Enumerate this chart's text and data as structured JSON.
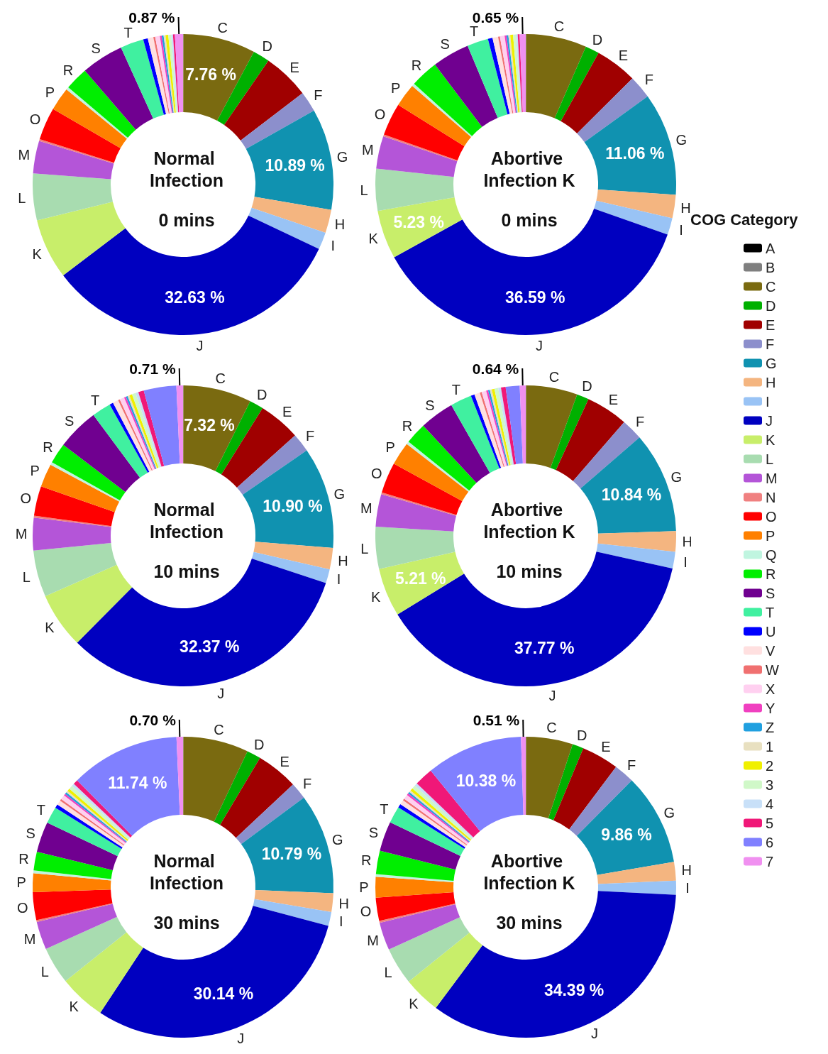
{
  "chart_data": [
    {
      "type": "donut",
      "title": "Normal Infection",
      "subtitle": "0 mins",
      "legend": "right",
      "legend_title": "COG Category",
      "categories": [
        "A",
        "B",
        "C",
        "D",
        "E",
        "F",
        "G",
        "H",
        "I",
        "J",
        "K",
        "L",
        "M",
        "N",
        "O",
        "P",
        "Q",
        "R",
        "S",
        "T",
        "U",
        "V",
        "W",
        "X",
        "Y",
        "Z",
        "1",
        "2",
        "3",
        "4",
        "5",
        "6",
        "7"
      ],
      "values": [
        0,
        0.05,
        7.76,
        1.8,
        5,
        2.2,
        10.89,
        2.5,
        1.85,
        32.63,
        6.5,
        5,
        3.5,
        0.2,
        3.5,
        2.5,
        0.3,
        2.5,
        4.55,
        2.5,
        0.5,
        0.6,
        0.2,
        0.5,
        0.2,
        0.2,
        0.2,
        0.3,
        0.3,
        0.2,
        0.2,
        0,
        0.87
      ],
      "colors": [
        "#000000",
        "#7f7f7f",
        "#7a6a10",
        "#00b000",
        "#a00000",
        "#8c8fcc",
        "#1092b0",
        "#f4b580",
        "#99c3f5",
        "#0000c0",
        "#c8ee6a",
        "#a8dcb0",
        "#b455d8",
        "#f08080",
        "#ff0000",
        "#ff8000",
        "#c0f5e0",
        "#00ee00",
        "#700090",
        "#40f0a0",
        "#0000ff",
        "#ffe0e0",
        "#f07070",
        "#ffd0f0",
        "#f040c0",
        "#20a0e0",
        "#e8e0c0",
        "#f0f000",
        "#d0f8c8",
        "#c8e0f8",
        "#f01878",
        "#8080ff",
        "#f090f0"
      ],
      "value_labels": [
        null,
        null,
        "7.76 %",
        null,
        null,
        null,
        "10.89 %",
        null,
        null,
        "32.63 %",
        null,
        null,
        null,
        null,
        null,
        null,
        null,
        null,
        null,
        null,
        null,
        null,
        null,
        null,
        null,
        null,
        null,
        null,
        null,
        null,
        null,
        null,
        "0.87 %"
      ]
    },
    {
      "type": "donut",
      "title": "Abortive Infection K",
      "subtitle": "0 mins",
      "categories": [
        null,
        null,
        "C",
        "D",
        "E",
        "F",
        "G",
        "H",
        "I",
        "J",
        "K",
        "L",
        "M",
        null,
        "O",
        "P",
        null,
        "R",
        "S",
        "T",
        null,
        null,
        null,
        null,
        null,
        null,
        null,
        null,
        null,
        null,
        null,
        null,
        null
      ],
      "values": [
        0,
        0.05,
        6.5,
        1.5,
        4.5,
        2.5,
        11.06,
        2.5,
        1.8,
        36.59,
        5.23,
        4.5,
        3.5,
        0.2,
        3.5,
        2.5,
        0.3,
        3,
        4,
        2.27,
        0.5,
        0.6,
        0.2,
        0.5,
        0.2,
        0.2,
        0.2,
        0.3,
        0.3,
        0.2,
        0.2,
        0,
        0.65
      ],
      "colors": [
        "#000000",
        "#7f7f7f",
        "#7a6a10",
        "#00b000",
        "#a00000",
        "#8c8fcc",
        "#1092b0",
        "#f4b580",
        "#99c3f5",
        "#0000c0",
        "#c8ee6a",
        "#a8dcb0",
        "#b455d8",
        "#f08080",
        "#ff0000",
        "#ff8000",
        "#c0f5e0",
        "#00ee00",
        "#700090",
        "#40f0a0",
        "#0000ff",
        "#ffe0e0",
        "#f07070",
        "#ffd0f0",
        "#f040c0",
        "#20a0e0",
        "#e8e0c0",
        "#f0f000",
        "#d0f8c8",
        "#c8e0f8",
        "#f01878",
        "#8080ff",
        "#f090f0"
      ],
      "value_labels": [
        null,
        null,
        null,
        null,
        null,
        null,
        "11.06 %",
        null,
        null,
        "36.59 %",
        "5.23 %",
        null,
        null,
        null,
        null,
        null,
        null,
        null,
        null,
        null,
        null,
        null,
        null,
        null,
        null,
        null,
        null,
        null,
        null,
        null,
        null,
        null,
        "0.65 %"
      ]
    },
    {
      "type": "donut",
      "title": "Normal Infection",
      "subtitle": "10 mins",
      "categories": [
        null,
        null,
        "C",
        "D",
        "E",
        "F",
        "G",
        "H",
        "I",
        "J",
        "K",
        "L",
        "M",
        null,
        "O",
        "P",
        null,
        "R",
        "S",
        "T",
        null,
        null,
        null,
        null,
        null,
        null,
        null,
        null,
        null,
        null,
        null,
        null,
        null
      ],
      "values": [
        0,
        0.05,
        7.32,
        1.5,
        4.5,
        2,
        10.9,
        2.3,
        1.5,
        32.37,
        6,
        5,
        3.5,
        0.2,
        3.2,
        2.5,
        0.3,
        2.2,
        4.5,
        2.05,
        0.4,
        0.6,
        0.2,
        0.5,
        0.2,
        0.2,
        0.2,
        0.3,
        0.4,
        0.3,
        0.6,
        3.5,
        0.71
      ],
      "colors": [
        "#000000",
        "#7f7f7f",
        "#7a6a10",
        "#00b000",
        "#a00000",
        "#8c8fcc",
        "#1092b0",
        "#f4b580",
        "#99c3f5",
        "#0000c0",
        "#c8ee6a",
        "#a8dcb0",
        "#b455d8",
        "#f08080",
        "#ff0000",
        "#ff8000",
        "#c0f5e0",
        "#00ee00",
        "#700090",
        "#40f0a0",
        "#0000ff",
        "#ffe0e0",
        "#f07070",
        "#ffd0f0",
        "#f040c0",
        "#20a0e0",
        "#e8e0c0",
        "#f0f000",
        "#d0f8c8",
        "#c8e0f8",
        "#f01878",
        "#8080ff",
        "#f090f0"
      ],
      "value_labels": [
        null,
        null,
        "7.32 %",
        null,
        null,
        null,
        "10.90 %",
        null,
        null,
        "32.37 %",
        null,
        null,
        null,
        null,
        null,
        null,
        null,
        null,
        null,
        null,
        null,
        null,
        null,
        null,
        null,
        null,
        null,
        null,
        null,
        null,
        null,
        null,
        "0.71 %"
      ]
    },
    {
      "type": "donut",
      "title": "Abortive Infection K",
      "subtitle": "10 mins",
      "categories": [
        null,
        null,
        "C",
        "D",
        "E",
        "F",
        "G",
        "H",
        "I",
        "J",
        "K",
        "L",
        "M",
        null,
        "O",
        "P",
        null,
        "R",
        "S",
        "T",
        null,
        null,
        null,
        null,
        null,
        null,
        null,
        null,
        null,
        null,
        null,
        null,
        null
      ],
      "values": [
        0,
        0.05,
        5.5,
        1.3,
        4.5,
        2.3,
        10.84,
        2.2,
        1.8,
        37.77,
        5.21,
        4.5,
        3.5,
        0.2,
        3.3,
        2.5,
        0.3,
        2.3,
        3.69,
        2.3,
        0.4,
        0.6,
        0.2,
        0.5,
        0.2,
        0.2,
        0.2,
        0.3,
        0.4,
        0.3,
        0.5,
        1.5,
        0.64
      ],
      "colors": [
        "#000000",
        "#7f7f7f",
        "#7a6a10",
        "#00b000",
        "#a00000",
        "#8c8fcc",
        "#1092b0",
        "#f4b580",
        "#99c3f5",
        "#0000c0",
        "#c8ee6a",
        "#a8dcb0",
        "#b455d8",
        "#f08080",
        "#ff0000",
        "#ff8000",
        "#c0f5e0",
        "#00ee00",
        "#700090",
        "#40f0a0",
        "#0000ff",
        "#ffe0e0",
        "#f07070",
        "#ffd0f0",
        "#f040c0",
        "#20a0e0",
        "#e8e0c0",
        "#f0f000",
        "#d0f8c8",
        "#c8e0f8",
        "#f01878",
        "#8080ff",
        "#f090f0"
      ],
      "value_labels": [
        null,
        null,
        null,
        null,
        null,
        null,
        "10.84 %",
        null,
        null,
        "37.77 %",
        "5.21 %",
        null,
        null,
        null,
        null,
        null,
        null,
        null,
        null,
        null,
        null,
        null,
        null,
        null,
        null,
        null,
        null,
        null,
        null,
        null,
        null,
        null,
        "0.64 %"
      ]
    },
    {
      "type": "donut",
      "title": "Normal Infection",
      "subtitle": "30 mins",
      "categories": [
        null,
        null,
        "C",
        "D",
        "E",
        "F",
        "G",
        "H",
        "I",
        "J",
        "K",
        "L",
        "M",
        null,
        "O",
        "P",
        null,
        "R",
        "S",
        "T",
        null,
        null,
        null,
        null,
        null,
        null,
        null,
        null,
        null,
        null,
        null,
        null,
        null
      ],
      "values": [
        0,
        0.05,
        7,
        1.5,
        4.5,
        1.8,
        10.79,
        2,
        1.5,
        30.14,
        5,
        4,
        3,
        0.2,
        3,
        2,
        0.3,
        2,
        3.28,
        1.8,
        0.4,
        0.5,
        0.2,
        0.5,
        0.2,
        0.2,
        0.2,
        0.3,
        0.4,
        0.3,
        0.5,
        11.74,
        0.7
      ],
      "colors": [
        "#000000",
        "#7f7f7f",
        "#7a6a10",
        "#00b000",
        "#a00000",
        "#8c8fcc",
        "#1092b0",
        "#f4b580",
        "#99c3f5",
        "#0000c0",
        "#c8ee6a",
        "#a8dcb0",
        "#b455d8",
        "#f08080",
        "#ff0000",
        "#ff8000",
        "#c0f5e0",
        "#00ee00",
        "#700090",
        "#40f0a0",
        "#0000ff",
        "#ffe0e0",
        "#f07070",
        "#ffd0f0",
        "#f040c0",
        "#20a0e0",
        "#e8e0c0",
        "#f0f000",
        "#d0f8c8",
        "#c8e0f8",
        "#f01878",
        "#8080ff",
        "#f090f0"
      ],
      "value_labels": [
        null,
        null,
        null,
        null,
        null,
        null,
        "10.79 %",
        null,
        null,
        "30.14 %",
        null,
        null,
        null,
        null,
        null,
        null,
        null,
        null,
        null,
        null,
        null,
        null,
        null,
        null,
        null,
        null,
        null,
        null,
        null,
        null,
        null,
        "11.74 %",
        "0.70 %"
      ]
    },
    {
      "type": "donut",
      "title": "Abortive Infection K",
      "subtitle": "30 mins",
      "categories": [
        null,
        null,
        "C",
        "D",
        "E",
        "F",
        "G",
        "H",
        "I",
        "J",
        "K",
        "L",
        "M",
        null,
        "O",
        "P",
        null,
        "R",
        "S",
        "T",
        null,
        null,
        null,
        null,
        null,
        null,
        null,
        null,
        null,
        null,
        null,
        null,
        null
      ],
      "values": [
        0,
        0.05,
        5,
        1.2,
        4,
        2.2,
        9.86,
        2,
        1.5,
        34.39,
        4,
        4,
        3,
        0.2,
        2.5,
        2.2,
        0.3,
        2.5,
        3.21,
        1.8,
        0.4,
        0.5,
        0.2,
        0.5,
        0.2,
        0.2,
        0.2,
        0.3,
        0.4,
        0.3,
        2,
        10.38,
        0.51
      ],
      "colors": [
        "#000000",
        "#7f7f7f",
        "#7a6a10",
        "#00b000",
        "#a00000",
        "#8c8fcc",
        "#1092b0",
        "#f4b580",
        "#99c3f5",
        "#0000c0",
        "#c8ee6a",
        "#a8dcb0",
        "#b455d8",
        "#f08080",
        "#ff0000",
        "#ff8000",
        "#c0f5e0",
        "#00ee00",
        "#700090",
        "#40f0a0",
        "#0000ff",
        "#ffe0e0",
        "#f07070",
        "#ffd0f0",
        "#f040c0",
        "#20a0e0",
        "#e8e0c0",
        "#f0f000",
        "#d0f8c8",
        "#c8e0f8",
        "#f01878",
        "#8080ff",
        "#f090f0"
      ],
      "value_labels": [
        null,
        null,
        null,
        null,
        null,
        null,
        "9.86 %",
        null,
        null,
        "34.39 %",
        null,
        null,
        null,
        null,
        null,
        null,
        null,
        null,
        null,
        null,
        null,
        null,
        null,
        null,
        null,
        null,
        null,
        null,
        null,
        null,
        null,
        "10.38 %",
        "0.51 %"
      ]
    }
  ]
}
